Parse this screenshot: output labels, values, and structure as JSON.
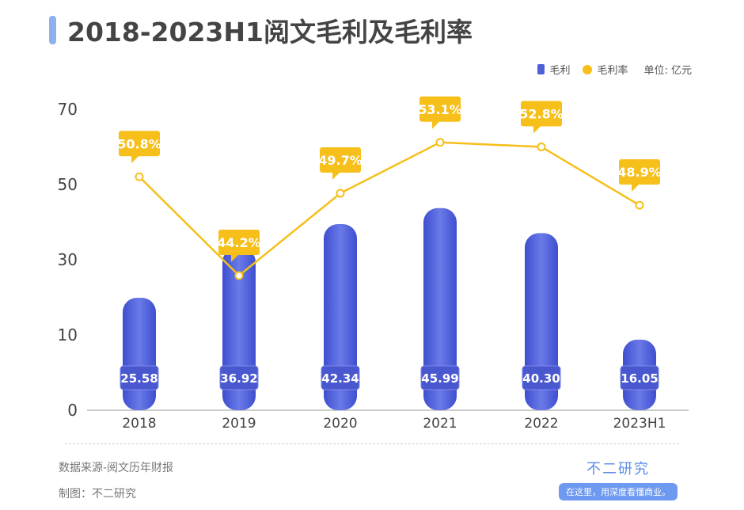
{
  "title": "2018-2023H1阅文毛利及毛利率",
  "legend": {
    "bar": "毛利",
    "line": "毛利率",
    "unit": "单位: 亿元"
  },
  "colors": {
    "bar": "#4f5fd8",
    "line": "#f6bf1a",
    "label_bg": "#f6bf1a"
  },
  "footer": {
    "source": "数据来源-阅文历年财报",
    "maker": "制图：不二研究",
    "brand": "不二研究",
    "slogan": "在这里，用深度看懂商业。"
  },
  "chart_data": {
    "type": "bar+line",
    "categories": [
      "2018",
      "2019",
      "2020",
      "2021",
      "2022",
      "2023H1"
    ],
    "y_ticks": [
      "0",
      "10",
      "30",
      "50",
      "70"
    ],
    "series": [
      {
        "name": "毛利",
        "type": "bar",
        "values": [
          25.58,
          36.92,
          42.34,
          45.99,
          40.3,
          16.05
        ],
        "labels": [
          "25.58",
          "36.92",
          "42.34",
          "45.99",
          "40.30",
          "16.05"
        ]
      },
      {
        "name": "毛利率",
        "type": "line",
        "values": [
          50.8,
          44.2,
          49.7,
          53.1,
          52.8,
          48.9
        ],
        "labels": [
          "50.8%",
          "44.2%",
          "49.7%",
          "53.1%",
          "52.8%",
          "48.9%"
        ]
      }
    ],
    "grid": false,
    "legend_position": "top-right"
  }
}
